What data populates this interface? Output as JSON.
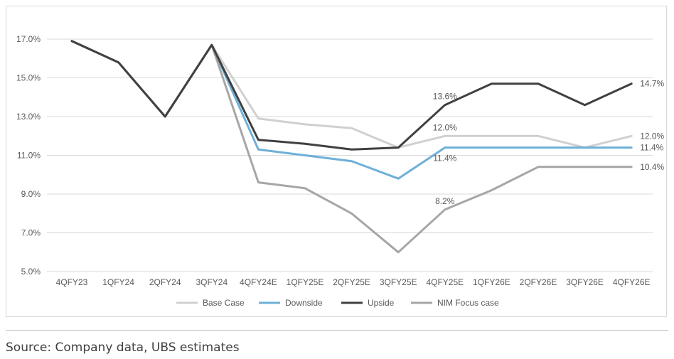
{
  "chart_data": {
    "type": "line",
    "title": "",
    "xlabel": "",
    "ylabel": "",
    "ylim": [
      5.0,
      17.0
    ],
    "y_ticks": [
      "5.0%",
      "7.0%",
      "9.0%",
      "11.0%",
      "13.0%",
      "15.0%",
      "17.0%"
    ],
    "grid": true,
    "legend_position": "bottom",
    "categories": [
      "4QFY23",
      "1QFY24",
      "2QFY24",
      "3QFY24",
      "4QFY24E",
      "1QFY25E",
      "2QFY25E",
      "3QFY25E",
      "4QFY25E",
      "1QFY26E",
      "2QFY26E",
      "3QFY26E",
      "4QFY26E"
    ],
    "series": [
      {
        "name": "Base Case",
        "color": "#d0d0d0",
        "values": [
          16.9,
          15.8,
          13.0,
          16.7,
          12.9,
          12.6,
          12.4,
          11.4,
          12.0,
          12.0,
          12.0,
          11.4,
          12.0
        ]
      },
      {
        "name": "Downside",
        "color": "#6eb0d8",
        "values": [
          16.9,
          15.8,
          13.0,
          16.7,
          11.3,
          11.0,
          10.7,
          9.8,
          11.4,
          11.4,
          11.4,
          11.4,
          11.4
        ]
      },
      {
        "name": "Upside",
        "color": "#404040",
        "values": [
          16.9,
          15.8,
          13.0,
          16.7,
          11.8,
          11.6,
          11.3,
          11.4,
          13.6,
          14.7,
          14.7,
          13.6,
          14.7
        ]
      },
      {
        "name": "NIM Focus case",
        "color": "#a6a6a6",
        "values": [
          16.9,
          15.8,
          13.0,
          16.7,
          9.6,
          9.3,
          8.0,
          6.0,
          8.2,
          9.2,
          10.4,
          10.4,
          10.4
        ]
      }
    ],
    "annotations": [
      {
        "text": "13.6%",
        "series": "Upside",
        "index": 8,
        "anchor": "above"
      },
      {
        "text": "12.0%",
        "series": "Base Case",
        "index": 8,
        "anchor": "above"
      },
      {
        "text": "11.4%",
        "series": "Downside",
        "index": 8,
        "anchor": "below"
      },
      {
        "text": "8.2%",
        "series": "NIM Focus case",
        "index": 8,
        "anchor": "above"
      },
      {
        "text": "14.7%",
        "series": "Upside",
        "index": 12,
        "anchor": "right"
      },
      {
        "text": "12.0%",
        "series": "Base Case",
        "index": 12,
        "anchor": "right"
      },
      {
        "text": "11.4%",
        "series": "Downside",
        "index": 12,
        "anchor": "right"
      },
      {
        "text": "10.4%",
        "series": "NIM Focus case",
        "index": 12,
        "anchor": "right"
      }
    ]
  },
  "source": "Source: Company data, UBS estimates",
  "colors": {
    "grid": "#d9d9d9",
    "frame": "#d9d9d9",
    "text": "#595959"
  }
}
